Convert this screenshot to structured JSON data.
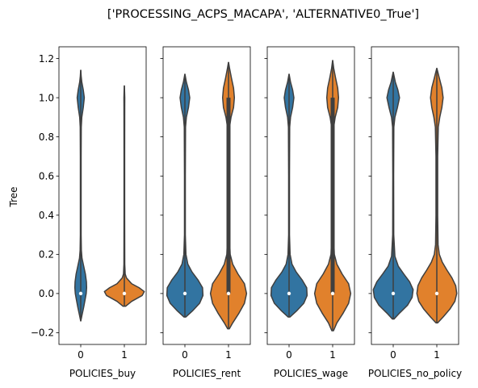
{
  "chart_data": {
    "type": "violin",
    "title": "['PROCESSING_ACPS_MACAPA', 'ALTERNATIVE0_True']",
    "ylabel": "Tree",
    "ylim": [
      -0.26,
      1.26
    ],
    "yticks": [
      1.2,
      1.0,
      0.8,
      0.6,
      0.4,
      0.2,
      0.0,
      -0.2
    ],
    "ytick_labels": [
      "1.2",
      "1.0",
      "0.8",
      "0.6",
      "0.4",
      "0.2",
      "0.0",
      "−0.2"
    ],
    "categories": [
      "0",
      "1"
    ],
    "colors": {
      "0": "#3274a1",
      "1": "#e1812c",
      "edge": "#3f3f3f"
    },
    "panels": [
      {
        "xlabel": "POLICIES_buy",
        "violins": [
          {
            "category": "0",
            "median": 0.0,
            "q1": 0.0,
            "q3": 0.0,
            "lo": -0.14,
            "hi": 1.14,
            "profile": [
              [
                -0.14,
                0.003
              ],
              [
                -0.11,
                0.06
              ],
              [
                -0.07,
                0.14
              ],
              [
                -0.03,
                0.21
              ],
              [
                0.0,
                0.26
              ],
              [
                0.03,
                0.28
              ],
              [
                0.06,
                0.27
              ],
              [
                0.1,
                0.22
              ],
              [
                0.14,
                0.14
              ],
              [
                0.18,
                0.06
              ],
              [
                0.22,
                0.03
              ],
              [
                0.3,
                0.018
              ],
              [
                0.5,
                0.018
              ],
              [
                0.7,
                0.018
              ],
              [
                0.85,
                0.025
              ],
              [
                0.9,
                0.05
              ],
              [
                0.95,
                0.12
              ],
              [
                1.0,
                0.17
              ],
              [
                1.04,
                0.12
              ],
              [
                1.08,
                0.05
              ],
              [
                1.11,
                0.02
              ],
              [
                1.14,
                0.003
              ]
            ]
          },
          {
            "category": "1",
            "median": 0.0,
            "q1": 0.0,
            "q3": 0.0,
            "lo": -0.065,
            "hi": 1.06,
            "profile": [
              [
                -0.065,
                0.06
              ],
              [
                -0.04,
                0.35
              ],
              [
                -0.01,
                0.85
              ],
              [
                0.01,
                0.95
              ],
              [
                0.03,
                0.7
              ],
              [
                0.05,
                0.35
              ],
              [
                0.08,
                0.1
              ],
              [
                0.1,
                0.04
              ],
              [
                0.15,
                0.02
              ],
              [
                0.4,
                0.015
              ],
              [
                0.7,
                0.015
              ],
              [
                0.95,
                0.018
              ],
              [
                1.0,
                0.02
              ],
              [
                1.03,
                0.012
              ],
              [
                1.06,
                0.003
              ]
            ]
          }
        ]
      },
      {
        "xlabel": "POLICIES_rent",
        "violins": [
          {
            "category": "0",
            "median": 0.0,
            "q1": 0.0,
            "q3": 0.0,
            "lo": -0.12,
            "hi": 1.12,
            "profile": [
              [
                -0.12,
                0.04
              ],
              [
                -0.09,
                0.35
              ],
              [
                -0.05,
                0.7
              ],
              [
                -0.01,
                0.86
              ],
              [
                0.03,
                0.84
              ],
              [
                0.07,
                0.62
              ],
              [
                0.11,
                0.34
              ],
              [
                0.15,
                0.14
              ],
              [
                0.2,
                0.05
              ],
              [
                0.3,
                0.02
              ],
              [
                0.6,
                0.02
              ],
              [
                0.85,
                0.03
              ],
              [
                0.9,
                0.07
              ],
              [
                0.95,
                0.17
              ],
              [
                1.0,
                0.23
              ],
              [
                1.04,
                0.17
              ],
              [
                1.08,
                0.07
              ],
              [
                1.12,
                0.003
              ]
            ]
          },
          {
            "category": "1",
            "median": 0.0,
            "q1": 0.0,
            "q3": 1.0,
            "lo": -0.18,
            "hi": 1.18,
            "profile": [
              [
                -0.18,
                0.04
              ],
              [
                -0.15,
                0.2
              ],
              [
                -0.1,
                0.5
              ],
              [
                -0.05,
                0.76
              ],
              [
                0.0,
                0.86
              ],
              [
                0.05,
                0.76
              ],
              [
                0.1,
                0.45
              ],
              [
                0.15,
                0.2
              ],
              [
                0.2,
                0.08
              ],
              [
                0.3,
                0.04
              ],
              [
                0.5,
                0.03
              ],
              [
                0.7,
                0.03
              ],
              [
                0.85,
                0.05
              ],
              [
                0.9,
                0.12
              ],
              [
                0.95,
                0.24
              ],
              [
                1.0,
                0.28
              ],
              [
                1.05,
                0.24
              ],
              [
                1.1,
                0.14
              ],
              [
                1.15,
                0.05
              ],
              [
                1.18,
                0.003
              ]
            ]
          }
        ]
      },
      {
        "xlabel": "POLICIES_wage",
        "violins": [
          {
            "category": "0",
            "median": 0.0,
            "q1": 0.0,
            "q3": 0.0,
            "lo": -0.12,
            "hi": 1.12,
            "profile": [
              [
                -0.12,
                0.04
              ],
              [
                -0.09,
                0.35
              ],
              [
                -0.05,
                0.7
              ],
              [
                -0.01,
                0.86
              ],
              [
                0.03,
                0.84
              ],
              [
                0.07,
                0.62
              ],
              [
                0.11,
                0.34
              ],
              [
                0.15,
                0.14
              ],
              [
                0.2,
                0.05
              ],
              [
                0.3,
                0.02
              ],
              [
                0.6,
                0.02
              ],
              [
                0.85,
                0.03
              ],
              [
                0.9,
                0.07
              ],
              [
                0.95,
                0.17
              ],
              [
                1.0,
                0.23
              ],
              [
                1.04,
                0.17
              ],
              [
                1.08,
                0.07
              ],
              [
                1.12,
                0.003
              ]
            ]
          },
          {
            "category": "1",
            "median": 0.0,
            "q1": 0.0,
            "q3": 1.0,
            "lo": -0.19,
            "hi": 1.19,
            "profile": [
              [
                -0.19,
                0.04
              ],
              [
                -0.15,
                0.2
              ],
              [
                -0.1,
                0.5
              ],
              [
                -0.05,
                0.76
              ],
              [
                0.0,
                0.86
              ],
              [
                0.05,
                0.76
              ],
              [
                0.1,
                0.45
              ],
              [
                0.15,
                0.2
              ],
              [
                0.2,
                0.08
              ],
              [
                0.3,
                0.04
              ],
              [
                0.5,
                0.03
              ],
              [
                0.7,
                0.03
              ],
              [
                0.85,
                0.05
              ],
              [
                0.9,
                0.12
              ],
              [
                0.95,
                0.24
              ],
              [
                1.0,
                0.28
              ],
              [
                1.05,
                0.24
              ],
              [
                1.1,
                0.14
              ],
              [
                1.15,
                0.05
              ],
              [
                1.19,
                0.003
              ]
            ]
          }
        ]
      },
      {
        "xlabel": "POLICIES_no_policy",
        "violins": [
          {
            "category": "0",
            "median": 0.0,
            "q1": 0.0,
            "q3": 0.0,
            "lo": -0.13,
            "hi": 1.13,
            "profile": [
              [
                -0.13,
                0.04
              ],
              [
                -0.1,
                0.3
              ],
              [
                -0.06,
                0.68
              ],
              [
                -0.02,
                0.9
              ],
              [
                0.02,
                0.95
              ],
              [
                0.06,
                0.78
              ],
              [
                0.1,
                0.5
              ],
              [
                0.14,
                0.24
              ],
              [
                0.19,
                0.08
              ],
              [
                0.3,
                0.025
              ],
              [
                0.6,
                0.02
              ],
              [
                0.85,
                0.03
              ],
              [
                0.9,
                0.08
              ],
              [
                0.95,
                0.2
              ],
              [
                1.0,
                0.3
              ],
              [
                1.04,
                0.22
              ],
              [
                1.08,
                0.1
              ],
              [
                1.13,
                0.003
              ]
            ]
          },
          {
            "category": "1",
            "median": 0.0,
            "q1": 0.0,
            "q3": 0.0,
            "lo": -0.15,
            "hi": 1.15,
            "profile": [
              [
                -0.15,
                0.04
              ],
              [
                -0.12,
                0.3
              ],
              [
                -0.08,
                0.62
              ],
              [
                -0.04,
                0.86
              ],
              [
                0.0,
                0.95
              ],
              [
                0.04,
                0.9
              ],
              [
                0.08,
                0.72
              ],
              [
                0.12,
                0.48
              ],
              [
                0.16,
                0.26
              ],
              [
                0.2,
                0.12
              ],
              [
                0.25,
                0.06
              ],
              [
                0.4,
                0.04
              ],
              [
                0.7,
                0.04
              ],
              [
                0.85,
                0.07
              ],
              [
                0.9,
                0.14
              ],
              [
                0.95,
                0.24
              ],
              [
                1.0,
                0.3
              ],
              [
                1.05,
                0.24
              ],
              [
                1.1,
                0.12
              ],
              [
                1.15,
                0.003
              ]
            ]
          }
        ]
      }
    ]
  }
}
